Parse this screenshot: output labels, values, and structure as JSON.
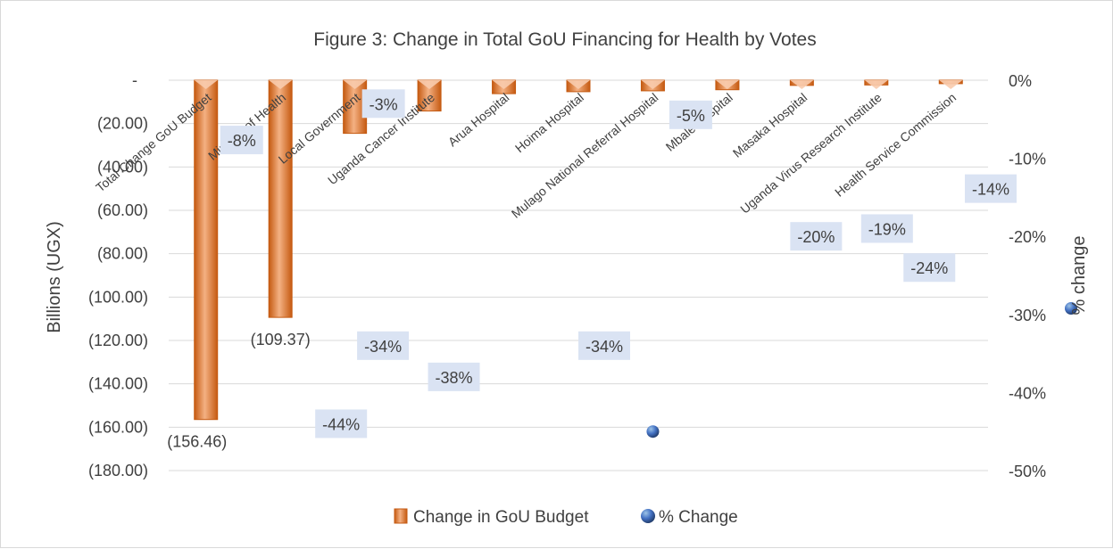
{
  "chart_data": {
    "type": "bar",
    "title": "Figure 3: Change in Total GoU Financing for Health by Votes",
    "ylabel": "Billions (UGX)",
    "y2label": "% change",
    "ylim": [
      -180,
      0
    ],
    "y2lim": [
      -0.5,
      0
    ],
    "grid": true,
    "legend_position": "bottom",
    "yticks": [
      {
        "value": 0,
        "label": "-"
      },
      {
        "value": -20,
        "label": "(20.00)"
      },
      {
        "value": -40,
        "label": "(40.00)"
      },
      {
        "value": -60,
        "label": "(60.00)"
      },
      {
        "value": -80,
        "label": "(80.00)"
      },
      {
        "value": -100,
        "label": "(100.00)"
      },
      {
        "value": -120,
        "label": "(120.00)"
      },
      {
        "value": -140,
        "label": "(140.00)"
      },
      {
        "value": -160,
        "label": "(160.00)"
      },
      {
        "value": -180,
        "label": "(180.00)"
      }
    ],
    "y2ticks": [
      {
        "value": 0,
        "label": "0%"
      },
      {
        "value": -0.1,
        "label": "-10%"
      },
      {
        "value": -0.2,
        "label": "-20%"
      },
      {
        "value": -0.3,
        "label": "-30%"
      },
      {
        "value": -0.4,
        "label": "-40%"
      },
      {
        "value": -0.5,
        "label": "-50%"
      }
    ],
    "categories": [
      "Total Change GoU Budget",
      "Ministry of Health",
      "Local Government",
      "Uganda Cancer Institute",
      "Arua Hospital",
      "Hoima Hospital",
      "Mulago National Referral Hospital",
      "Mbale Hospital",
      "Masaka Hospital",
      "Uganda Virus Research Institute",
      "Health Service Commission"
    ],
    "series": [
      {
        "name": "Change in GoU Budget",
        "type": "bar",
        "axis": "left",
        "color": "#ED7D31",
        "values": [
          -156.46,
          -109.37,
          -24.5,
          -14.2,
          -6.2,
          -5.3,
          -4.9,
          -4.4,
          -2.4,
          -2.2,
          -1.6
        ],
        "data_labels": [
          "(156.46)",
          "(109.37)",
          null,
          null,
          null,
          null,
          null,
          null,
          null,
          null,
          null
        ]
      },
      {
        "name": "% Change",
        "type": "scatter",
        "axis": "right",
        "color": "#4472C4",
        "values": [
          -0.08,
          -0.44,
          -0.03,
          -0.34,
          -0.38,
          -0.34,
          -0.45,
          -0.05,
          -0.2,
          -0.19,
          -0.24
        ],
        "data_labels": [
          "-8%",
          "-44%",
          "-3%",
          "-34%",
          "-38%",
          "-34%",
          null,
          "-5%",
          "-20%",
          "-19%",
          "-24%"
        ]
      }
    ],
    "extra_annotations": [
      {
        "text": "-14%",
        "value": -0.14
      }
    ]
  }
}
